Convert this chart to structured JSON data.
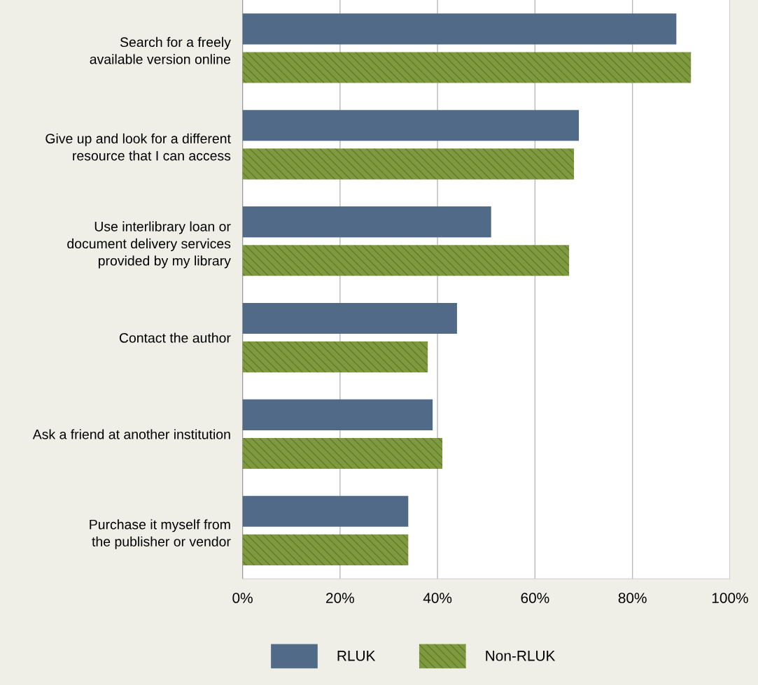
{
  "chart_data": {
    "type": "bar",
    "orientation": "horizontal",
    "categories": [
      "Search for a freely\navailable version online",
      "Give up and look for a different\nresource that I can access",
      "Use interlibrary loan or\ndocument delivery services\nprovided by my library",
      "Contact the author",
      "Ask a friend at another institution",
      "Purchase it myself from\nthe publisher or vendor"
    ],
    "series": [
      {
        "name": "RLUK",
        "color": "#506a87",
        "values": [
          89,
          69,
          51,
          44,
          39,
          34
        ]
      },
      {
        "name": "Non-RLUK",
        "color": "#7f9a3e",
        "values": [
          92,
          68,
          67,
          38,
          41,
          34
        ]
      }
    ],
    "xlim": [
      0,
      100
    ],
    "xticks": [
      {
        "value": 0,
        "label": "0%"
      },
      {
        "value": 20,
        "label": "20%"
      },
      {
        "value": 40,
        "label": "40%"
      },
      {
        "value": 60,
        "label": "60%"
      },
      {
        "value": 80,
        "label": "80%"
      },
      {
        "value": 100,
        "label": "100%"
      }
    ],
    "grid": "x",
    "legend": "bottom"
  }
}
